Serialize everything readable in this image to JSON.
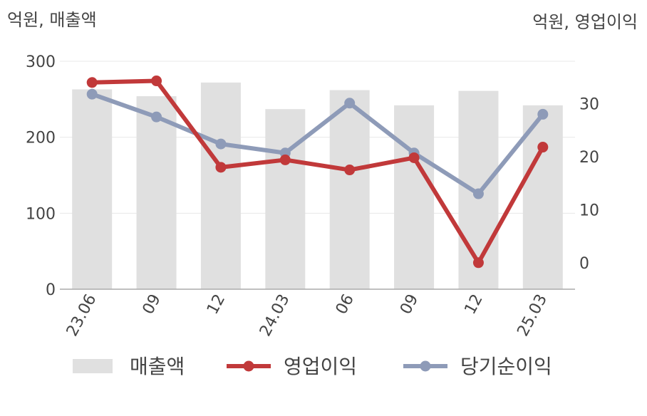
{
  "chart_data": {
    "type": "bar+line",
    "left_axis_unit": "억원, 매출액",
    "right_axis_unit": "억원, 영업이익",
    "categories": [
      "23.06",
      "09",
      "12",
      "24.03",
      "06",
      "09",
      "12",
      "25.03"
    ],
    "left_ylim": [
      0,
      300
    ],
    "left_ticks": [
      0,
      100,
      200,
      300
    ],
    "right_ylim": [
      -5,
      38
    ],
    "right_ticks": [
      0,
      10,
      20,
      30
    ],
    "grid": true,
    "legend_position": "bottom",
    "bar_series": {
      "name": "매출액",
      "color": "#e0e0e0",
      "values": [
        263,
        254,
        272,
        237,
        262,
        242,
        261,
        242
      ]
    },
    "line_series": [
      {
        "name": "영업이익",
        "color": "#c1393a",
        "values": [
          34,
          34.3,
          18,
          19.4,
          17.5,
          19.8,
          0,
          21.8
        ]
      },
      {
        "name": "당기순이익",
        "color": "#8e9bb8",
        "values": [
          31.8,
          27.5,
          22.4,
          20.7,
          30.1,
          20.7,
          13,
          28
        ]
      }
    ]
  }
}
